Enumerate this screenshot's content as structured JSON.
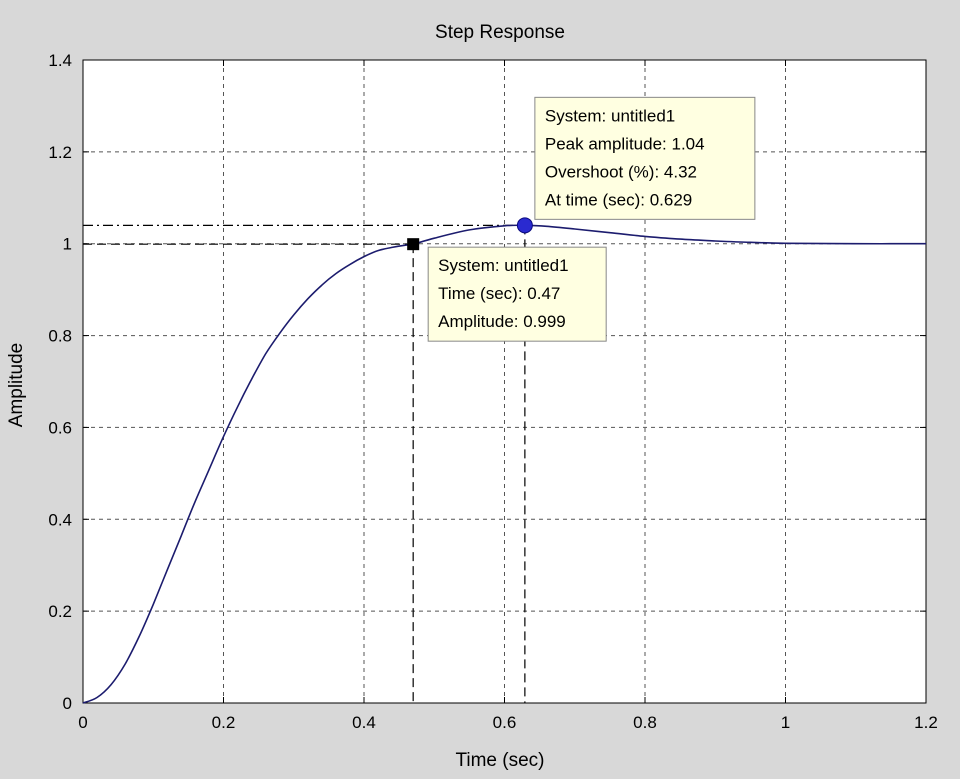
{
  "chart_data": {
    "type": "line",
    "title": "Step Response",
    "xlabel": "Time (sec)",
    "ylabel": "Amplitude",
    "xlim": [
      0,
      1.2
    ],
    "ylim": [
      0,
      1.4
    ],
    "grid": true,
    "xticks": [
      0,
      0.2,
      0.4,
      0.6,
      0.8,
      1,
      1.2
    ],
    "xtick_labels": [
      "0",
      "0.2",
      "0.4",
      "0.6",
      "0.8",
      "1",
      "1.2"
    ],
    "yticks": [
      0,
      0.2,
      0.4,
      0.6,
      0.8,
      1,
      1.2,
      1.4
    ],
    "ytick_labels": [
      "0",
      "0.2",
      "0.4",
      "0.6",
      "0.8",
      "1",
      "1.2",
      "1.4"
    ],
    "series": [
      {
        "line_color": "#1c1c6e",
        "x": [
          0,
          0.02,
          0.04,
          0.06,
          0.08,
          0.1,
          0.12,
          0.14,
          0.16,
          0.18,
          0.2,
          0.22,
          0.24,
          0.26,
          0.28,
          0.3,
          0.32,
          0.34,
          0.36,
          0.38,
          0.4,
          0.42,
          0.44,
          0.46,
          0.47,
          0.5,
          0.55,
          0.6,
          0.629,
          0.66,
          0.7,
          0.75,
          0.8,
          0.85,
          0.9,
          0.95,
          1.0,
          1.1,
          1.2
        ],
        "y": [
          0,
          0.012,
          0.04,
          0.085,
          0.145,
          0.215,
          0.29,
          0.365,
          0.44,
          0.51,
          0.58,
          0.645,
          0.705,
          0.76,
          0.805,
          0.845,
          0.88,
          0.91,
          0.935,
          0.955,
          0.972,
          0.985,
          0.992,
          0.997,
          0.999,
          1.012,
          1.03,
          1.039,
          1.04,
          1.038,
          1.032,
          1.024,
          1.016,
          1.01,
          1.006,
          1.003,
          1.001,
          1.0,
          1.0
        ]
      }
    ],
    "annotations": [
      {
        "marker": "square",
        "marker_color": "#000000",
        "x": 0.47,
        "y": 0.999,
        "lines": [
          "System: untitled1",
          "Time (sec): 0.47",
          "Amplitude: 0.999"
        ]
      },
      {
        "marker": "circle",
        "marker_color": "#2a2ad0",
        "x": 0.629,
        "y": 1.04,
        "lines": [
          "System: untitled1",
          "Peak amplitude: 1.04",
          "Overshoot (%): 4.32",
          "At time (sec): 0.629"
        ]
      }
    ]
  }
}
